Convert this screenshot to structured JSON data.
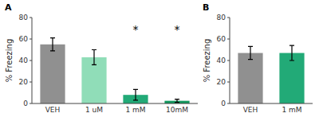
{
  "chart_data": [
    {
      "type": "bar",
      "title": "A",
      "categories": [
        "VEH",
        "1 uM",
        "1 mM",
        "10mM"
      ],
      "values": [
        55,
        43,
        8,
        2.5
      ],
      "errors": [
        6,
        7,
        5,
        1.5
      ],
      "colors": [
        "#909090",
        "#90DDB8",
        "#22AA77",
        "#11995E"
      ],
      "annotations": [
        {
          "text": "*",
          "x": "1 mM"
        },
        {
          "text": "*",
          "x": "10mM"
        }
      ],
      "y_label": "% Freezing",
      "ylim": [
        0,
        80
      ],
      "yticks": [
        0,
        20,
        40,
        60,
        80
      ]
    },
    {
      "type": "bar",
      "title": "B",
      "categories": [
        "VEH",
        "1 mM"
      ],
      "values": [
        47,
        47
      ],
      "errors": [
        6,
        7
      ],
      "colors": [
        "#909090",
        "#22AA77"
      ],
      "y_label": "% Freezing",
      "ylim": [
        0,
        80
      ],
      "yticks": [
        0,
        20,
        40,
        60,
        80
      ]
    }
  ]
}
